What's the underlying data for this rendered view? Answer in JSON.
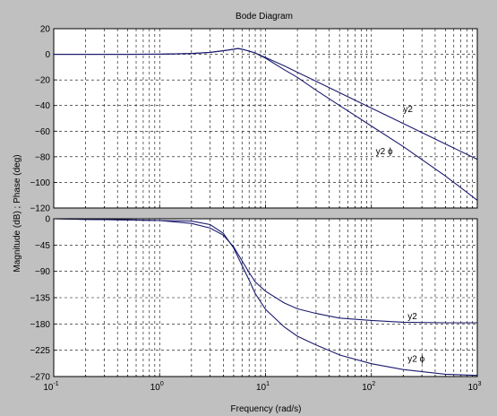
{
  "chart_data": {
    "type": "line",
    "title": "Bode Diagram",
    "xlabel": "Frequency  (rad/s)",
    "ylabel": "Magnitude (dB) ; Phase (deg)",
    "xscale": "log",
    "xlim": [
      0.1,
      1000
    ],
    "x_tick_labels": [
      {
        "base": "10",
        "exp": "-1"
      },
      {
        "base": "10",
        "exp": "0"
      },
      {
        "base": "10",
        "exp": "1"
      },
      {
        "base": "10",
        "exp": "2"
      },
      {
        "base": "10",
        "exp": "3"
      }
    ],
    "grid": true,
    "background_color": "#c0c0c0",
    "plot_color": "#ffffff",
    "line_color": "#1a1a6e",
    "panels": [
      {
        "name": "magnitude",
        "ylim": [
          -120,
          20
        ],
        "yticks": [
          20,
          0,
          -20,
          -40,
          -60,
          -80,
          -100,
          -120
        ],
        "series": [
          {
            "name": "y2",
            "label_at": [
              200,
              -45
            ],
            "points": [
              [
                0.1,
                0
              ],
              [
                0.5,
                0
              ],
              [
                1,
                0.1
              ],
              [
                2,
                0.6
              ],
              [
                3,
                1.5
              ],
              [
                4,
                2.8
              ],
              [
                5,
                4
              ],
              [
                5.5,
                4.5
              ],
              [
                6,
                4
              ],
              [
                7,
                2.5
              ],
              [
                8,
                1
              ],
              [
                10,
                -2.5
              ],
              [
                15,
                -9
              ],
              [
                20,
                -14
              ],
              [
                30,
                -21
              ],
              [
                50,
                -30
              ],
              [
                100,
                -42
              ],
              [
                200,
                -54
              ],
              [
                500,
                -70
              ],
              [
                1000,
                -82
              ]
            ]
          },
          {
            "name": "y2 ϕ",
            "label_at": [
              110,
              -78
            ],
            "points": [
              [
                0.1,
                0
              ],
              [
                0.5,
                0
              ],
              [
                1,
                0.1
              ],
              [
                2,
                0.6
              ],
              [
                3,
                1.5
              ],
              [
                4,
                2.8
              ],
              [
                5,
                4
              ],
              [
                5.5,
                4.5
              ],
              [
                6,
                4
              ],
              [
                7,
                2.5
              ],
              [
                8,
                1
              ],
              [
                10,
                -3
              ],
              [
                15,
                -12
              ],
              [
                20,
                -18
              ],
              [
                30,
                -28
              ],
              [
                50,
                -40
              ],
              [
                100,
                -56
              ],
              [
                200,
                -72
              ],
              [
                500,
                -95
              ],
              [
                1000,
                -114
              ]
            ]
          }
        ]
      },
      {
        "name": "phase",
        "ylim": [
          -270,
          0
        ],
        "yticks": [
          0,
          -45,
          -90,
          -135,
          -180,
          -225,
          -270
        ],
        "series": [
          {
            "name": "y2",
            "label_at": [
              220,
              -172
            ],
            "points": [
              [
                0.1,
                0
              ],
              [
                0.2,
                -1
              ],
              [
                0.5,
                -2
              ],
              [
                1,
                -3
              ],
              [
                2,
                -8
              ],
              [
                3,
                -16
              ],
              [
                4,
                -28
              ],
              [
                5,
                -48
              ],
              [
                6,
                -72
              ],
              [
                7,
                -92
              ],
              [
                8,
                -108
              ],
              [
                10,
                -124
              ],
              [
                15,
                -144
              ],
              [
                20,
                -154
              ],
              [
                30,
                -162
              ],
              [
                50,
                -170
              ],
              [
                100,
                -174
              ],
              [
                200,
                -177
              ],
              [
                500,
                -178
              ],
              [
                1000,
                -178
              ]
            ]
          },
          {
            "name": "y2 ϕ",
            "label_at": [
              220,
              -245
            ],
            "points": [
              [
                0.1,
                0
              ],
              [
                0.2,
                -1
              ],
              [
                0.5,
                -2
              ],
              [
                1,
                -3
              ],
              [
                2,
                -4
              ],
              [
                3,
                -10
              ],
              [
                4,
                -25
              ],
              [
                5,
                -50
              ],
              [
                6,
                -80
              ],
              [
                7,
                -105
              ],
              [
                8,
                -128
              ],
              [
                10,
                -155
              ],
              [
                15,
                -185
              ],
              [
                20,
                -201
              ],
              [
                30,
                -216
              ],
              [
                50,
                -233
              ],
              [
                100,
                -248
              ],
              [
                200,
                -258
              ],
              [
                500,
                -266
              ],
              [
                1000,
                -268
              ]
            ]
          }
        ]
      }
    ]
  }
}
